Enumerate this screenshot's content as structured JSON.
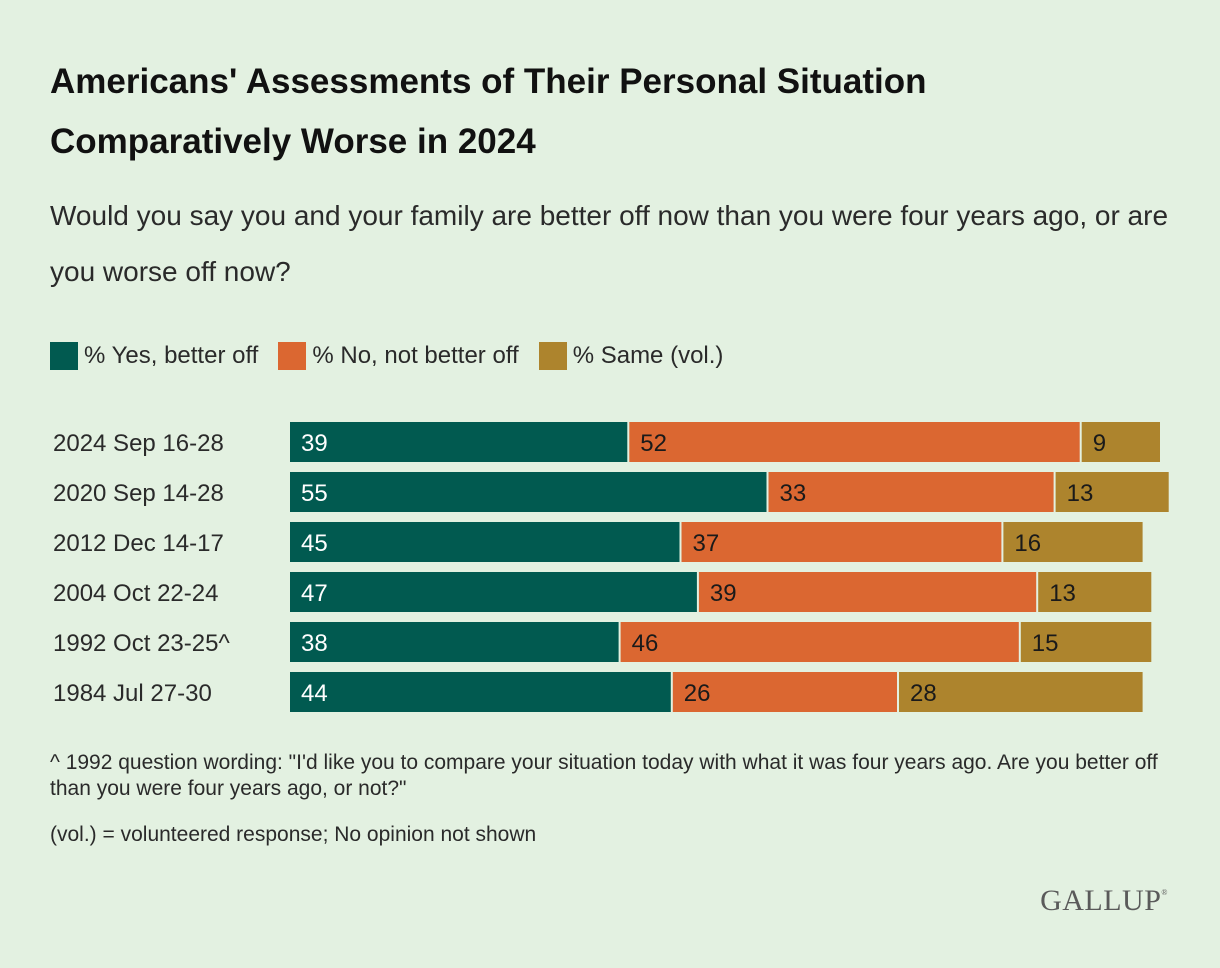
{
  "title": "Americans' Assessments of Their Personal Situation Comparatively Worse in 2024",
  "subtitle": "Would you say you and your family are better off now than you were four years ago, or are you worse off now?",
  "legend": [
    {
      "label": "% Yes, better off",
      "color": "#015a50"
    },
    {
      "label": "% No, not better off",
      "color": "#db6731"
    },
    {
      "label": "% Same (vol.)",
      "color": "#ad842d"
    }
  ],
  "footnotes": [
    "^ 1992 question wording: \"I'd like you to compare your situation today with what it was four years ago. Are you better off than you were four years ago, or not?\"",
    "(vol.) = volunteered response; No opinion not shown"
  ],
  "logo": "GALLUP",
  "chart_data": {
    "type": "bar",
    "orientation": "horizontal",
    "stacked": true,
    "title": "Americans' Assessments of Their Personal Situation Comparatively Worse in 2024",
    "xlabel": "",
    "ylabel": "",
    "xlim": [
      0,
      100
    ],
    "grid": false,
    "legend_position": "top-left",
    "categories": [
      "2024 Sep 16-28",
      "2020 Sep 14-28",
      "2012 Dec 14-17",
      "2004 Oct 22-24",
      "1992 Oct 23-25^",
      "1984 Jul 27-30"
    ],
    "series": [
      {
        "name": "% Yes, better off",
        "color": "#015a50",
        "label_color": "#ffffff",
        "values": [
          39,
          55,
          45,
          47,
          38,
          44
        ]
      },
      {
        "name": "% No, not better off",
        "color": "#db6731",
        "label_color": "#1a1a1a",
        "values": [
          52,
          33,
          37,
          39,
          46,
          26
        ]
      },
      {
        "name": "% Same (vol.)",
        "color": "#ad842d",
        "label_color": "#1a1a1a",
        "values": [
          9,
          13,
          16,
          13,
          15,
          28
        ]
      }
    ]
  }
}
